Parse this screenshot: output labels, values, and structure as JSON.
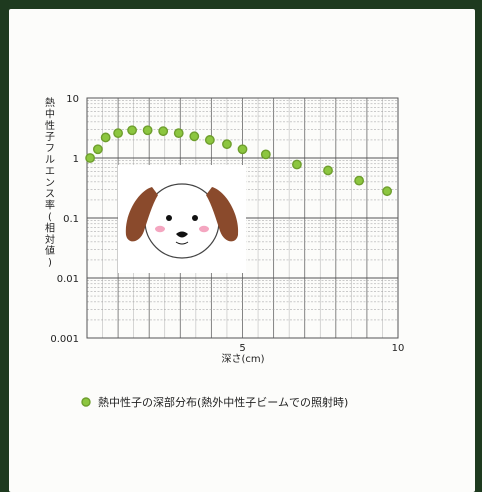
{
  "chart_data": {
    "type": "scatter",
    "title": "",
    "xlabel": "深さ(cm)",
    "ylabel": "熱中性子フルエンス率(相対値)",
    "x_scale": "linear",
    "y_scale": "log",
    "xlim": [
      0,
      10
    ],
    "ylim": [
      0.001,
      10
    ],
    "x_ticks": [
      {
        "value": 5,
        "label": "5"
      },
      {
        "value": 10,
        "label": "10"
      }
    ],
    "y_ticks": [
      {
        "value": 10,
        "label": "10"
      },
      {
        "value": 1,
        "label": "1"
      },
      {
        "value": 0.1,
        "label": "0.1"
      },
      {
        "value": 0.01,
        "label": "0.01"
      },
      {
        "value": 0.001,
        "label": "0.001"
      }
    ],
    "grid": true,
    "legend": "bottom",
    "series": [
      {
        "name": "熱中性子の深部分布(熱外中性子ビームでの照射時)",
        "color": "#8cc63f",
        "points": [
          {
            "x": 0.1,
            "y": 1.0
          },
          {
            "x": 0.35,
            "y": 1.4
          },
          {
            "x": 0.6,
            "y": 2.2
          },
          {
            "x": 1.0,
            "y": 2.6
          },
          {
            "x": 1.45,
            "y": 2.9
          },
          {
            "x": 1.95,
            "y": 2.9
          },
          {
            "x": 2.45,
            "y": 2.8
          },
          {
            "x": 2.95,
            "y": 2.6
          },
          {
            "x": 3.45,
            "y": 2.3
          },
          {
            "x": 3.95,
            "y": 2.0
          },
          {
            "x": 4.5,
            "y": 1.7
          },
          {
            "x": 5.0,
            "y": 1.4
          },
          {
            "x": 5.75,
            "y": 1.15
          },
          {
            "x": 6.75,
            "y": 0.78
          },
          {
            "x": 7.75,
            "y": 0.62
          },
          {
            "x": 8.75,
            "y": 0.42
          },
          {
            "x": 9.65,
            "y": 0.28
          }
        ]
      }
    ]
  },
  "icons": {
    "overlay": "dog-face-icon"
  }
}
